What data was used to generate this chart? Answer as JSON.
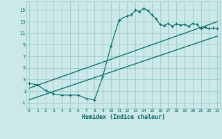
{
  "xlabel": "Humidex (Indice chaleur)",
  "bg_color": "#cce8e8",
  "grid_color": "#99cccc",
  "line_color": "#006666",
  "curve_x": [
    0,
    1,
    2,
    3,
    4,
    5,
    6,
    7,
    8,
    9,
    10,
    11,
    12,
    12.5,
    13,
    13.5,
    14,
    14.5,
    15,
    15.5,
    16,
    16.5,
    17,
    17.5,
    18,
    18.5,
    19,
    19.5,
    20,
    20.5,
    21,
    21.5,
    22,
    22.5,
    23
  ],
  "curve_y": [
    2.3,
    2.1,
    1.1,
    0.5,
    0.3,
    0.3,
    0.3,
    -0.3,
    -0.5,
    3.5,
    8.8,
    13.3,
    14.0,
    14.2,
    15.0,
    14.7,
    15.3,
    14.9,
    14.2,
    13.5,
    12.5,
    12.3,
    12.7,
    12.2,
    12.6,
    12.4,
    12.5,
    12.2,
    12.7,
    12.5,
    11.8,
    12.0,
    11.8,
    11.9,
    11.8
  ],
  "line1_x": [
    0,
    23
  ],
  "line1_y": [
    1.5,
    13.0
  ],
  "line2_x": [
    0,
    23
  ],
  "line2_y": [
    -0.5,
    10.5
  ],
  "xlim": [
    -0.3,
    23.3
  ],
  "ylim": [
    -2.0,
    16.5
  ],
  "yticks": [
    -1,
    1,
    3,
    5,
    7,
    9,
    11,
    13,
    15
  ],
  "xticks": [
    0,
    1,
    2,
    3,
    4,
    5,
    6,
    7,
    8,
    9,
    10,
    11,
    12,
    13,
    14,
    15,
    16,
    17,
    18,
    19,
    20,
    21,
    22,
    23
  ]
}
